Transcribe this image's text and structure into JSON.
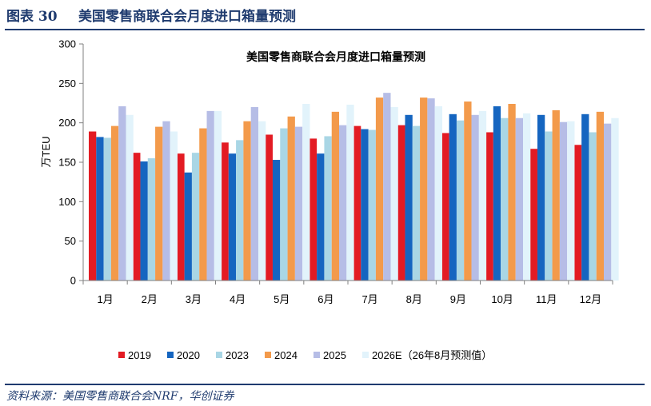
{
  "header": {
    "figure_label": "图表 30",
    "figure_title": "美国零售商联合会月度进口箱量预测"
  },
  "source": "资料来源：美国零售商联合会NRF，华创证券",
  "chart_data": {
    "type": "bar",
    "title": "美国零售商联合会月度进口箱量预测",
    "xlabel": "",
    "ylabel": "万TEU",
    "ylim": [
      0,
      300
    ],
    "yticks": [
      0,
      50,
      100,
      150,
      200,
      250,
      300
    ],
    "categories": [
      "1月",
      "2月",
      "3月",
      "4月",
      "5月",
      "6月",
      "7月",
      "8月",
      "9月",
      "10月",
      "11月",
      "12月"
    ],
    "series": [
      {
        "name": "2019",
        "color": "#e31b23",
        "values": [
          189,
          162,
          161,
          175,
          185,
          180,
          196,
          197,
          187,
          188,
          167,
          172
        ]
      },
      {
        "name": "2020",
        "color": "#1565c0",
        "values": [
          182,
          151,
          137,
          161,
          153,
          161,
          192,
          210,
          211,
          221,
          210,
          211
        ]
      },
      {
        "name": "2023",
        "color": "#a9d6e5",
        "values": [
          181,
          155,
          162,
          178,
          193,
          183,
          191,
          196,
          203,
          206,
          189,
          188
        ]
      },
      {
        "name": "2024",
        "color": "#f39a4b",
        "values": [
          196,
          195,
          193,
          202,
          208,
          214,
          232,
          232,
          227,
          224,
          216,
          214
        ]
      },
      {
        "name": "2025",
        "color": "#b6bde6",
        "values": [
          221,
          202,
          215,
          220,
          195,
          197,
          238,
          231,
          210,
          206,
          201,
          199
        ]
      },
      {
        "name": "2026E（26年8月预测值）",
        "color": "#e2f3fb",
        "values": [
          210,
          189,
          215,
          202,
          224,
          223,
          220,
          221,
          215,
          212,
          202,
          206
        ]
      }
    ],
    "grid": false,
    "legend_position": "bottom"
  }
}
